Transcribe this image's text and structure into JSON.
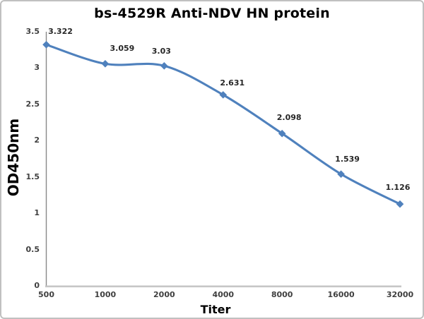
{
  "chart_data": {
    "type": "line",
    "title": "bs-4529R Anti-NDV HN protein",
    "xlabel": "Titer",
    "ylabel": "OD450nm",
    "categories": [
      "500",
      "1000",
      "2000",
      "4000",
      "8000",
      "16000",
      "32000"
    ],
    "values": [
      3.322,
      3.059,
      3.03,
      2.631,
      2.098,
      1.539,
      1.126
    ],
    "data_labels": [
      "3.322",
      "3.059",
      "3.03",
      "2.631",
      "2.098",
      "1.539",
      "1.126"
    ],
    "y_ticks": [
      "0",
      "0.5",
      "1",
      "1.5",
      "2",
      "2.5",
      "3",
      "3.5"
    ],
    "ylim": [
      0,
      3.5
    ],
    "grid": false,
    "legend_position": "none",
    "line_smooth": true,
    "marker_shape": "diamond",
    "colors": {
      "series": "#4f81bd",
      "y_axis": "#888888",
      "x_axis": "#c6c6c6",
      "tick_text": "#3f3f3f",
      "data_label_text": "#262626",
      "title_text": "#000000",
      "frame_border": "#c0c0c0",
      "background": "#ffffff"
    }
  }
}
